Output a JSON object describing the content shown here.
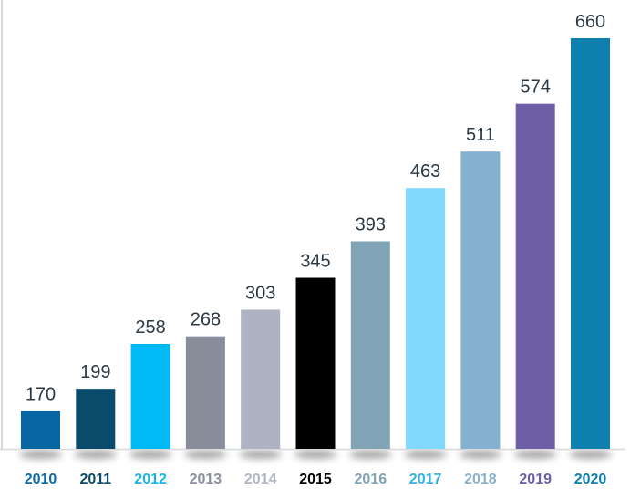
{
  "chart_data": {
    "type": "bar",
    "title": "",
    "xlabel": "",
    "ylabel": "",
    "categories": [
      "2010",
      "2011",
      "2012",
      "2013",
      "2014",
      "2015",
      "2016",
      "2017",
      "2018",
      "2019",
      "2020"
    ],
    "values": [
      170,
      199,
      258,
      268,
      303,
      345,
      393,
      463,
      511,
      574,
      660
    ],
    "ylim": [
      120,
      660
    ],
    "grid": false,
    "legend": "none",
    "bar_colors": [
      "#0767a5",
      "#0a4a6b",
      "#00b9f5",
      "#878e9a",
      "#adb3c3",
      "#000000",
      "#80a4b6",
      "#80d8fd",
      "#85b1d1",
      "#6e5ea7",
      "#0e80ae"
    ],
    "label_colors": [
      "#0e6aa3",
      "#0b4a6e",
      "#1ab4ea",
      "#8a909c",
      "#b0b5c4",
      "#000000",
      "#80a3b5",
      "#2fb3e5",
      "#8ab0cc",
      "#6d5fa6",
      "#0e7fae"
    ],
    "value_label_color": "#2a3a44"
  }
}
